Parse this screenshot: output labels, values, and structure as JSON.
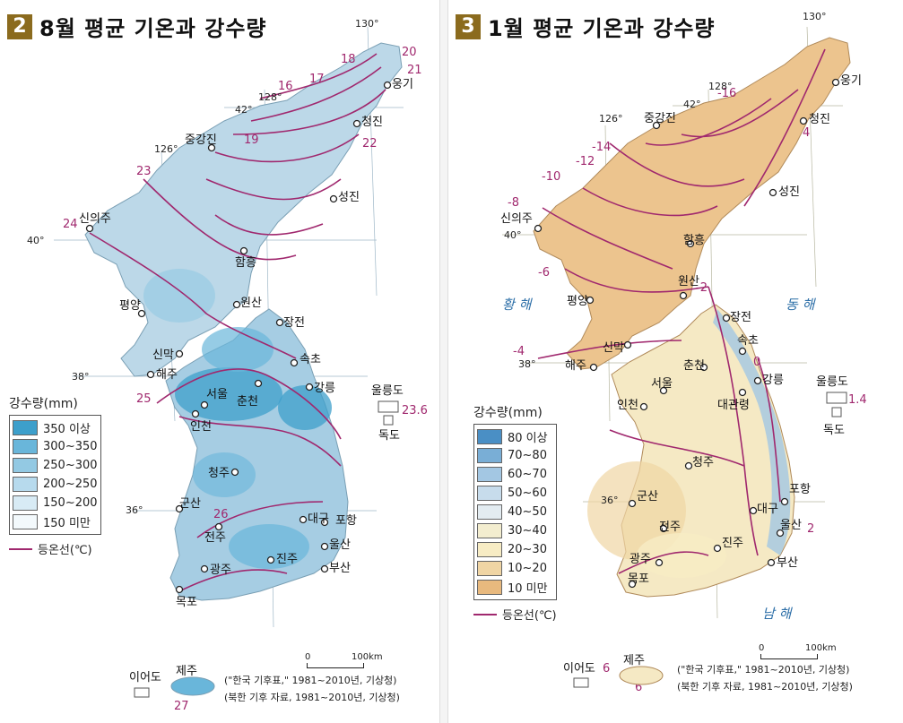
{
  "aug": {
    "num": "2",
    "title": "8월 평균 기온과 강수량",
    "legend_title": "강수량(mm)",
    "legend": [
      {
        "label": "350 이상",
        "color": "#3d9fcb"
      },
      {
        "label": "300~350",
        "color": "#69b6da"
      },
      {
        "label": "250~300",
        "color": "#93c9e3"
      },
      {
        "label": "200~250",
        "color": "#b7daed"
      },
      {
        "label": "150~200",
        "color": "#d8ebf5"
      },
      {
        "label": "150 미만",
        "color": "#f3f9fc"
      }
    ],
    "isotherm_label": "등온선(℃)",
    "isotherm_color": "#a0286e",
    "cities": [
      {
        "name": "웅기"
      },
      {
        "name": "청진"
      },
      {
        "name": "중강진"
      },
      {
        "name": "성진"
      },
      {
        "name": "신의주"
      },
      {
        "name": "함흥"
      },
      {
        "name": "원산"
      },
      {
        "name": "평양"
      },
      {
        "name": "장전"
      },
      {
        "name": "신막"
      },
      {
        "name": "속초"
      },
      {
        "name": "해주"
      },
      {
        "name": "강릉"
      },
      {
        "name": "서울"
      },
      {
        "name": "춘천"
      },
      {
        "name": "인천"
      },
      {
        "name": "청주"
      },
      {
        "name": "군산"
      },
      {
        "name": "대구"
      },
      {
        "name": "포항"
      },
      {
        "name": "전주"
      },
      {
        "name": "울산"
      },
      {
        "name": "광주"
      },
      {
        "name": "진주"
      },
      {
        "name": "부산"
      },
      {
        "name": "목포"
      }
    ],
    "isotherm_values": [
      "16",
      "17",
      "18",
      "19",
      "20",
      "21",
      "22",
      "23",
      "24",
      "25",
      "26",
      "27"
    ],
    "graticule": [
      "130°",
      "128°",
      "126°",
      "42°",
      "40°",
      "38°",
      "36°"
    ],
    "islands": {
      "ulleung": "울릉도",
      "ulleung_temp": "23.6",
      "dokdo": "독도",
      "ieodo": "이어도",
      "jeju": "제주",
      "jeju_temp": "27"
    },
    "scale": {
      "zero": "0",
      "km": "100km"
    },
    "sources": [
      "(\"한국 기후표,\" 1981~2010년, 기상청)",
      "(북한 기후 자료, 1981~2010년, 기상청)"
    ]
  },
  "jan": {
    "num": "3",
    "title": "1월 평균 기온과 강수량",
    "legend_title": "강수량(mm)",
    "legend": [
      {
        "label": "80 이상",
        "color": "#4a8fc5"
      },
      {
        "label": "70~80",
        "color": "#79aed6"
      },
      {
        "label": "60~70",
        "color": "#a3c7e3"
      },
      {
        "label": "50~60",
        "color": "#c7dcec"
      },
      {
        "label": "40~50",
        "color": "#e3ecf1"
      },
      {
        "label": "30~40",
        "color": "#f3edcf"
      },
      {
        "label": "20~30",
        "color": "#f7ecc4"
      },
      {
        "label": "10~20",
        "color": "#f0d5a4"
      },
      {
        "label": "10 미만",
        "color": "#e8b97e"
      }
    ],
    "isotherm_label": "등온선(℃)",
    "isotherm_color": "#a0286e",
    "seas": {
      "yellow": "황 해",
      "east": "동 해",
      "south": "남 해"
    },
    "cities": [
      {
        "name": "웅기"
      },
      {
        "name": "청진"
      },
      {
        "name": "중강진"
      },
      {
        "name": "성진"
      },
      {
        "name": "신의주"
      },
      {
        "name": "함흥"
      },
      {
        "name": "원산"
      },
      {
        "name": "평양"
      },
      {
        "name": "장전"
      },
      {
        "name": "신막"
      },
      {
        "name": "속초"
      },
      {
        "name": "해주"
      },
      {
        "name": "강릉"
      },
      {
        "name": "춘천"
      },
      {
        "name": "서울"
      },
      {
        "name": "대관령"
      },
      {
        "name": "인천"
      },
      {
        "name": "청주"
      },
      {
        "name": "포항"
      },
      {
        "name": "군산"
      },
      {
        "name": "대구"
      },
      {
        "name": "전주"
      },
      {
        "name": "울산"
      },
      {
        "name": "진주"
      },
      {
        "name": "광주"
      },
      {
        "name": "부산"
      },
      {
        "name": "목포"
      }
    ],
    "isotherm_values": [
      "-16",
      "-14",
      "-12",
      "-10",
      "-8",
      "-6",
      "-4",
      "-2",
      "0",
      "2",
      "4",
      "6"
    ],
    "graticule": [
      "130°",
      "128°",
      "126°",
      "42°",
      "40°",
      "38°",
      "36°"
    ],
    "islands": {
      "ulleung": "울릉도",
      "ulleung_temp": "1.4",
      "dokdo": "독도",
      "ieodo": "이어도",
      "jeju": "제주",
      "jeju_temp": "6"
    },
    "scale": {
      "zero": "0",
      "km": "100km"
    },
    "sources": [
      "(\"한국 기후표,\" 1981~2010년, 기상청)",
      "(북한 기후 자료, 1981~2010년, 기상청)"
    ]
  }
}
